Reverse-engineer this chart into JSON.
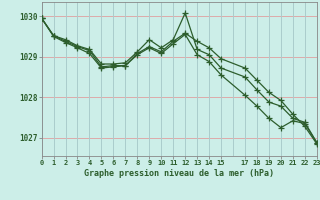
{
  "title": "Graphe pression niveau de la mer (hPa)",
  "background_color": "#cceee8",
  "grid_color_h": "#ddaaaa",
  "grid_color_v": "#aacccc",
  "line_color": "#2d5e2d",
  "border_color": "#888888",
  "xlim": [
    0,
    23
  ],
  "ylim": [
    1026.55,
    1030.35
  ],
  "yticks": [
    1027,
    1028,
    1029,
    1030
  ],
  "xtick_vals": [
    0,
    1,
    2,
    3,
    4,
    5,
    6,
    7,
    8,
    9,
    10,
    11,
    12,
    13,
    14,
    15,
    17,
    18,
    19,
    20,
    21,
    22,
    23
  ],
  "xtick_labels": [
    "0",
    "1",
    "2",
    "3",
    "4",
    "5",
    "6",
    "7",
    "8",
    "9",
    "10",
    "11",
    "12",
    "13",
    "14",
    "15",
    "17",
    "18",
    "19",
    "20",
    "21",
    "22",
    "23"
  ],
  "series1_x": [
    0,
    1,
    2,
    3,
    4,
    5,
    6,
    7,
    8,
    9,
    10,
    11,
    12,
    13,
    14,
    15,
    17,
    18,
    19,
    20,
    21,
    22,
    23
  ],
  "series1_y": [
    1029.95,
    1029.52,
    1029.42,
    1029.27,
    1029.18,
    1028.82,
    1028.82,
    1028.85,
    1029.12,
    1029.42,
    1029.22,
    1029.42,
    1030.08,
    1029.18,
    1029.05,
    1028.72,
    1028.5,
    1028.18,
    1027.88,
    1027.78,
    1027.48,
    1027.38,
    1026.88
  ],
  "series2_x": [
    0,
    1,
    2,
    3,
    4,
    5,
    6,
    7,
    8,
    9,
    10,
    11,
    12,
    13,
    14,
    15,
    17,
    18,
    19,
    20,
    21,
    22,
    23
  ],
  "series2_y": [
    1029.95,
    1029.52,
    1029.38,
    1029.25,
    1029.15,
    1028.75,
    1028.78,
    1028.78,
    1029.08,
    1029.25,
    1029.12,
    1029.38,
    1029.58,
    1029.38,
    1029.22,
    1028.95,
    1028.72,
    1028.42,
    1028.12,
    1027.92,
    1027.58,
    1027.28,
    1026.85
  ],
  "series3_x": [
    0,
    1,
    2,
    3,
    4,
    5,
    6,
    7,
    8,
    9,
    10,
    11,
    12,
    13,
    14,
    15,
    17,
    18,
    19,
    20,
    21,
    22,
    23
  ],
  "series3_y": [
    1029.95,
    1029.5,
    1029.35,
    1029.22,
    1029.08,
    1028.72,
    1028.75,
    1028.78,
    1029.05,
    1029.22,
    1029.08,
    1029.32,
    1029.55,
    1029.05,
    1028.88,
    1028.55,
    1028.05,
    1027.78,
    1027.48,
    1027.25,
    1027.42,
    1027.35,
    1026.88
  ],
  "marker": "+",
  "marker_size": 4,
  "line_width": 0.9
}
